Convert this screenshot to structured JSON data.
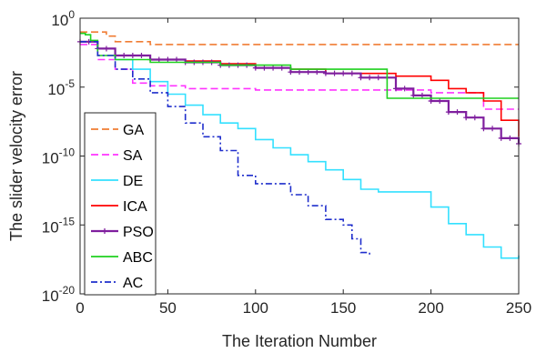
{
  "chart_data": {
    "type": "line",
    "xlabel": "The Iteration Number",
    "ylabel": "The slider velocity error",
    "xlim": [
      0,
      250
    ],
    "ylim_exponent": [
      -20,
      0
    ],
    "yscale": "log",
    "xticks": [
      "0",
      "50",
      "100",
      "150",
      "200",
      "250"
    ],
    "yticks": [
      {
        "base": "10",
        "exp": "-20",
        "exp_value": -20
      },
      {
        "base": "10",
        "exp": "-15",
        "exp_value": -15
      },
      {
        "base": "10",
        "exp": "-10",
        "exp_value": -10
      },
      {
        "base": "10",
        "exp": "-5",
        "exp_value": -5
      },
      {
        "base": "10",
        "exp": "0",
        "exp_value": 0
      }
    ],
    "grid": false,
    "legend_position": "center-left",
    "series": [
      {
        "name": "GA",
        "color": "#f07c33",
        "dash": "dash",
        "marker": "none",
        "x": [
          0,
          5,
          10,
          15,
          20,
          40,
          250
        ],
        "y": [
          0.1,
          0.1,
          0.1,
          0.05,
          0.0197,
          0.0124,
          0.0124
        ]
      },
      {
        "name": "SA",
        "color": "#ff33ff",
        "dash": "dash",
        "marker": "none",
        "x": [
          0,
          10,
          20,
          30,
          40,
          60,
          100,
          160,
          200,
          230,
          250
        ],
        "y": [
          0.0124,
          0.00099,
          0.000197,
          1.97e-05,
          1.24e-05,
          7.8e-06,
          6.2e-06,
          6.2e-06,
          3.9e-06,
          2.5e-07,
          2.5e-07
        ]
      },
      {
        "name": "DE",
        "color": "#33e0ff",
        "dash": "solid",
        "marker": "none",
        "x": [
          0,
          10,
          20,
          30,
          40,
          50,
          60,
          70,
          80,
          90,
          100,
          110,
          120,
          130,
          140,
          150,
          160,
          170,
          180,
          190,
          200,
          210,
          220,
          230,
          240,
          250
        ],
        "y": [
          0.0197,
          0.0062,
          0.00099,
          0.000197,
          2.5e-05,
          3.1e-06,
          4.9e-07,
          9.9e-08,
          2.5e-08,
          9.9e-09,
          1.56e-09,
          3.9e-10,
          1.24e-10,
          3.9e-11,
          9.9e-12,
          1.97e-12,
          3.9e-13,
          2.5e-13,
          2.5e-13,
          2.5e-13,
          1.97e-14,
          1.24e-15,
          1.97e-16,
          2.5e-17,
          3.9e-18,
          6.2e-18
        ]
      },
      {
        "name": "ICA",
        "color": "#ff0000",
        "dash": "solid",
        "marker": "none",
        "x": [
          0,
          10,
          20,
          40,
          60,
          80,
          100,
          120,
          140,
          160,
          180,
          200,
          210,
          220,
          230,
          240,
          250
        ],
        "y": [
          0.0197,
          0.0062,
          0.00197,
          0.00099,
          0.000787,
          0.000493,
          0.000248,
          0.000197,
          9.9e-05,
          9.9e-05,
          6.2e-05,
          3.1e-05,
          7.8e-06,
          3.9e-06,
          9.9e-07,
          3.9e-08,
          2.5e-09
        ]
      },
      {
        "name": "PSO",
        "color": "#7f1f9e",
        "dash": "solid",
        "marker": "plus",
        "x": [
          0,
          10,
          20,
          40,
          60,
          80,
          100,
          120,
          140,
          160,
          180,
          190,
          200,
          210,
          220,
          230,
          240,
          250
        ],
        "y": [
          0.0197,
          0.0062,
          0.00197,
          0.00099,
          0.000625,
          0.000393,
          0.000248,
          0.000124,
          9.9e-05,
          4.9e-05,
          7.8e-06,
          2.5e-06,
          9.9e-07,
          1.56e-07,
          6.2e-08,
          9.9e-09,
          1.97e-09,
          7.8e-10
        ]
      },
      {
        "name": "ABC",
        "color": "#1fd11f",
        "dash": "solid",
        "marker": "none",
        "x": [
          0,
          3,
          6,
          10,
          20,
          40,
          80,
          120,
          160,
          170,
          175,
          250
        ],
        "y": [
          0.0787,
          0.0625,
          0.0247,
          0.00197,
          0.00099,
          0.000625,
          0.000393,
          0.000197,
          0.000197,
          0.000197,
          1.56e-06,
          1.56e-06
        ]
      },
      {
        "name": "AC",
        "color": "#1f2ecc",
        "dash": "dashdot",
        "marker": "none",
        "x": [
          0,
          10,
          20,
          30,
          40,
          50,
          60,
          70,
          80,
          90,
          100,
          110,
          120,
          130,
          140,
          150,
          155,
          160,
          165
        ],
        "y": [
          0.0197,
          0.00197,
          0.000197,
          3.9e-05,
          3.9e-06,
          3.9e-07,
          2.5e-08,
          2.5e-09,
          2.5e-10,
          3.9e-12,
          9.9e-13,
          9.9e-13,
          1.56e-13,
          2.5e-14,
          2.5e-15,
          9.9e-16,
          9.9e-17,
          9.9e-18,
          6.2e-18
        ]
      }
    ]
  }
}
